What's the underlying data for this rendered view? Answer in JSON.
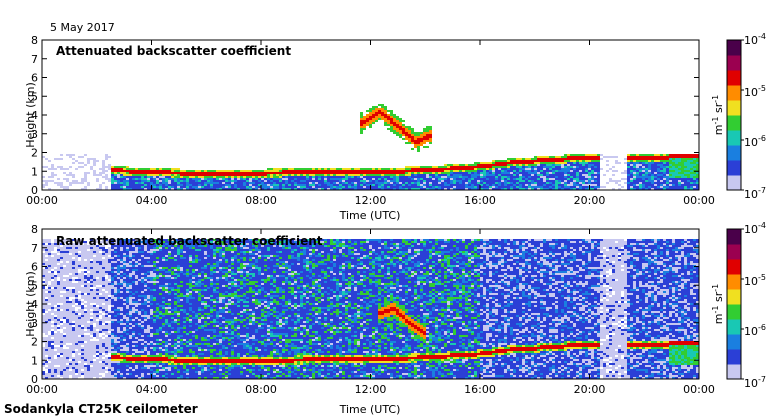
{
  "date_label": "5 May 2017",
  "instrument_label": "Sodankyla CT25K ceilometer",
  "colorbar": {
    "unit_base": "m",
    "unit_exp1": "-1",
    "unit_mid": " sr",
    "unit_exp2": "-1",
    "ticks": [
      {
        "base": "10",
        "exp": "-4",
        "value": 0.0001
      },
      {
        "base": "10",
        "exp": "-5",
        "value": 1e-05
      },
      {
        "base": "10",
        "exp": "-6",
        "value": 1e-06
      },
      {
        "base": "10",
        "exp": "-7",
        "value": 1e-07
      }
    ],
    "scale": "log",
    "range": [
      1e-07,
      0.0001
    ],
    "colors": [
      "#c8c8f0",
      "#2b3fd6",
      "#1a7fe0",
      "#19c8b4",
      "#32cd32",
      "#f0e020",
      "#ff8c00",
      "#e00000",
      "#9b0050",
      "#4a004a"
    ]
  },
  "chart_data": [
    {
      "type": "heatmap",
      "title": "Attenuated backscatter coefficient",
      "xlabel": "Time (UTC)",
      "ylabel": "Height (km)",
      "x_ticks": [
        "00:00",
        "04:00",
        "08:00",
        "12:00",
        "16:00",
        "20:00",
        "00:00"
      ],
      "y_ticks": [
        "0",
        "1",
        "2",
        "3",
        "4",
        "5",
        "6",
        "7",
        "8"
      ],
      "xlim_hours": [
        0,
        24
      ],
      "ylim_km": [
        0,
        8
      ],
      "z_scale": "log",
      "z_range": [
        1e-07,
        0.0001
      ],
      "features": [
        {
          "kind": "boundary_layer_top",
          "hours": [
            2.5,
            4,
            6,
            8,
            10,
            12,
            14,
            16,
            17,
            18,
            19,
            19.8
          ],
          "height_km": [
            1.1,
            1.0,
            0.9,
            0.95,
            1.0,
            1.0,
            1.1,
            1.3,
            1.5,
            1.6,
            1.7,
            1.8
          ]
        },
        {
          "kind": "elevated_cloud",
          "hours": [
            11.6,
            12.3,
            13.0,
            13.6,
            14.2
          ],
          "height_km": [
            3.6,
            4.2,
            3.4,
            2.6,
            3.0
          ]
        },
        {
          "kind": "late_cloud",
          "hours": [
            22.8,
            24.0
          ],
          "height_km": [
            1.9,
            1.9
          ]
        }
      ]
    },
    {
      "type": "heatmap",
      "title": "Raw attenuated backscatter coefficient",
      "xlabel": "Time (UTC)",
      "ylabel": "Height (km)",
      "x_ticks": [
        "00:00",
        "04:00",
        "08:00",
        "12:00",
        "16:00",
        "20:00",
        "00:00"
      ],
      "y_ticks": [
        "0",
        "1",
        "2",
        "3",
        "4",
        "5",
        "6",
        "7",
        "8"
      ],
      "xlim_hours": [
        0,
        24
      ],
      "ylim_km": [
        0,
        8
      ],
      "z_scale": "log",
      "z_range": [
        1e-07,
        0.0001
      ],
      "features": [
        {
          "kind": "boundary_layer_top",
          "hours": [
            2.5,
            4,
            6,
            8,
            10,
            12,
            14,
            16,
            17,
            18,
            19,
            19.8
          ],
          "height_km": [
            1.2,
            1.1,
            1.0,
            1.0,
            1.1,
            1.1,
            1.2,
            1.4,
            1.6,
            1.7,
            1.8,
            1.9
          ]
        },
        {
          "kind": "elevated_cloud",
          "hours": [
            12.2,
            12.8,
            13.4,
            14.0
          ],
          "height_km": [
            3.5,
            3.8,
            3.0,
            2.4
          ]
        },
        {
          "kind": "late_cloud",
          "hours": [
            22.8,
            24.0
          ],
          "height_km": [
            2.0,
            2.0
          ]
        }
      ]
    }
  ]
}
